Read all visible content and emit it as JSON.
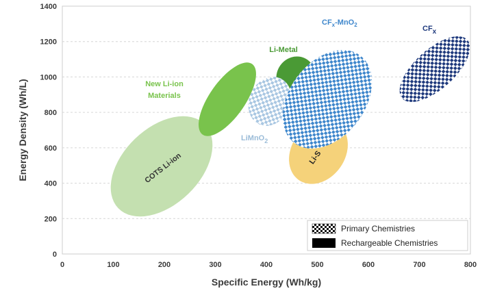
{
  "chart_data": {
    "type": "scatter",
    "xlabel": "Specific Energy (Wh/kg)",
    "ylabel": "Energy Density (Wh/L)",
    "xlim": [
      0,
      800
    ],
    "ylim": [
      0,
      1400
    ],
    "xticks": [
      "0",
      "100",
      "200",
      "300",
      "400",
      "500",
      "600",
      "700",
      "800"
    ],
    "yticks": [
      "0",
      "200",
      "400",
      "600",
      "800",
      "1000",
      "1200",
      "1400"
    ],
    "grid": "horizontal dashed",
    "regions": [
      {
        "label": "COTS Li-ion",
        "kind": "rechargeable",
        "color": "#c4e0b0",
        "x": [
          110,
          290
        ],
        "y": [
          250,
          730
        ]
      },
      {
        "label": "New Li-ion Materials",
        "kind": "rechargeable",
        "color": "#79c34c",
        "x": [
          260,
          390
        ],
        "y": [
          650,
          1100
        ]
      },
      {
        "label": "Li-Metal",
        "kind": "rechargeable",
        "color": "#4a9a35",
        "x": [
          400,
          500
        ],
        "y": [
          800,
          1100
        ]
      },
      {
        "label": "LiMnO2",
        "kind": "primary",
        "color": "#9bbcd8",
        "x": [
          360,
          440
        ],
        "y": [
          720,
          990
        ]
      },
      {
        "label": "Li-S",
        "kind": "rechargeable",
        "color": "#f5d27a",
        "x": [
          420,
          560
        ],
        "y": [
          390,
          770
        ]
      },
      {
        "label": "CFx-MnO2",
        "kind": "primary",
        "color": "#3f87cc",
        "x": [
          430,
          620
        ],
        "y": [
          570,
          1120
        ]
      },
      {
        "label": "CFx",
        "kind": "primary",
        "color": "#1f3a7d",
        "x": [
          660,
          800
        ],
        "y": [
          850,
          1240
        ]
      }
    ],
    "legend": {
      "position": "bottom-right",
      "entries": [
        {
          "label": "Primary Chemistries",
          "style": "checkered"
        },
        {
          "label": "Rechargeable Chemistries",
          "style": "solid"
        }
      ]
    }
  },
  "labels": {
    "cots": "COTS Li-ion",
    "newli_1": "New Li-ion",
    "newli_2": "Materials",
    "limetal": "Li-Metal",
    "limno2_main": "LiMnO",
    "limno2_sub": "2",
    "lis": "Li-S",
    "cfxmno2_a": "CF",
    "cfxmno2_x": "x",
    "cfxmno2_b": "-MnO",
    "cfxmno2_2": "2",
    "cfx_a": "CF",
    "cfx_x": "x"
  }
}
